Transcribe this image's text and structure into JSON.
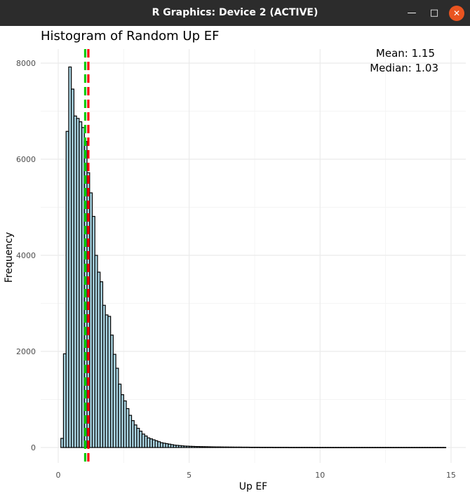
{
  "window": {
    "title": "R Graphics: Device 2 (ACTIVE)",
    "minimize_icon": "minimize-icon",
    "maximize_icon": "maximize-icon",
    "close_icon": "close-icon",
    "accent": "#e95420"
  },
  "colors": {
    "bar_fill": "#add8e6",
    "bar_stroke": "#000000",
    "mean_line": "#ff0000",
    "median_line": "#00cc00",
    "grid": "#ebebeb"
  },
  "chart_data": {
    "type": "bar",
    "title": "Histogram of Random Up EF",
    "xlabel": "Up EF",
    "ylabel": "Frequency",
    "xlim": [
      -0.1,
      15.3
    ],
    "ylim": [
      -300,
      8300
    ],
    "x_ticks": [
      0,
      5,
      10,
      15
    ],
    "y_ticks": [
      0,
      2000,
      4000,
      6000,
      8000
    ],
    "grid": true,
    "bin_width": 0.1,
    "bin_start": 0.1,
    "values": [
      190,
      1950,
      6580,
      7920,
      7460,
      6900,
      6850,
      6780,
      6660,
      6370,
      5720,
      5300,
      4810,
      4000,
      3650,
      3450,
      2960,
      2760,
      2730,
      2340,
      1940,
      1650,
      1320,
      1100,
      970,
      810,
      670,
      560,
      470,
      400,
      340,
      280,
      240,
      200,
      180,
      160,
      140,
      120,
      100,
      90,
      80,
      70,
      60,
      50,
      45,
      40,
      35,
      30,
      28,
      25,
      23,
      21,
      20,
      18,
      17,
      16,
      15,
      14,
      13,
      12,
      12,
      11,
      10,
      10,
      9,
      9,
      8,
      8,
      8,
      7,
      7,
      7,
      6,
      6,
      6,
      6,
      5,
      5,
      5,
      5,
      5,
      4,
      4,
      4,
      4,
      4,
      4,
      3,
      3,
      3,
      3,
      3,
      3,
      3,
      3,
      3,
      2,
      2,
      2,
      2,
      2,
      2,
      2,
      2,
      2,
      2,
      2,
      2,
      2,
      2,
      2,
      2,
      2,
      2,
      2,
      2,
      2,
      2,
      2,
      2,
      2,
      2,
      2,
      2,
      2,
      2,
      2,
      2,
      2,
      2,
      2,
      2,
      2,
      2,
      2,
      2,
      2,
      2,
      2,
      2,
      2,
      2,
      2,
      2,
      2,
      2,
      2
    ],
    "mean": 1.15,
    "median": 1.03,
    "annotations": [
      "Mean: 1.15",
      "Median: 1.03"
    ]
  }
}
